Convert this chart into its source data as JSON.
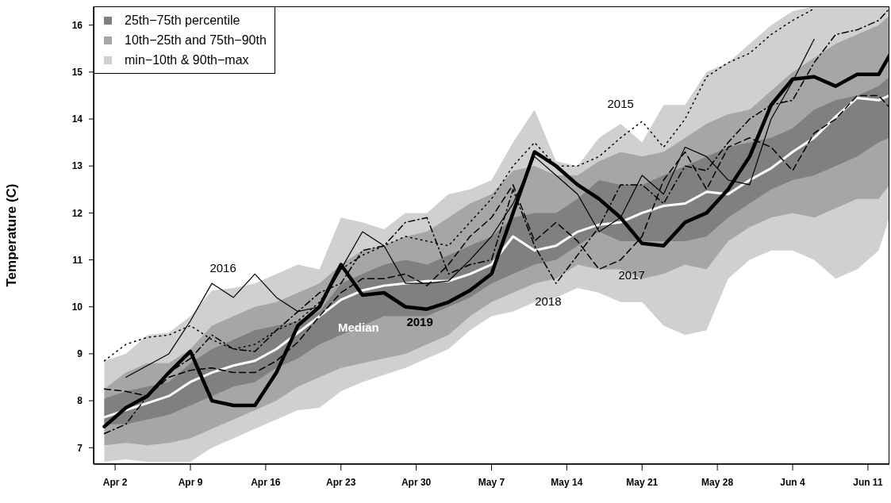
{
  "chart_data": {
    "type": "line",
    "ylabel": "Temperature (C)",
    "x": [
      "--04-01",
      "--04-03",
      "--04-05",
      "--04-07",
      "--04-09",
      "--04-11",
      "--04-13",
      "--04-15",
      "--04-17",
      "--04-19",
      "--04-21",
      "--04-23",
      "--04-25",
      "--04-27",
      "--04-29",
      "--05-01",
      "--05-03",
      "--05-05",
      "--05-07",
      "--05-09",
      "--05-11",
      "--05-13",
      "--05-15",
      "--05-17",
      "--05-19",
      "--05-21",
      "--05-23",
      "--05-25",
      "--05-27",
      "--05-29",
      "--05-31",
      "--06-02",
      "--06-04",
      "--06-06",
      "--06-08",
      "--06-10",
      "--06-12",
      "--06-13"
    ],
    "xlim": [
      "--03-31",
      "--06-13"
    ],
    "xticks": [
      {
        "value": "--04-02",
        "label": "Apr 2"
      },
      {
        "value": "--04-09",
        "label": "Apr 9"
      },
      {
        "value": "--04-16",
        "label": "Apr 16"
      },
      {
        "value": "--04-23",
        "label": "Apr 23"
      },
      {
        "value": "--04-30",
        "label": "Apr 30"
      },
      {
        "value": "--05-07",
        "label": "May 7"
      },
      {
        "value": "--05-14",
        "label": "May 14"
      },
      {
        "value": "--05-21",
        "label": "May 21"
      },
      {
        "value": "--05-28",
        "label": "May 28"
      },
      {
        "value": "--06-04",
        "label": "Jun 4"
      },
      {
        "value": "--06-11",
        "label": "Jun 11"
      }
    ],
    "ylim": [
      6.65,
      16.4
    ],
    "yticks": [
      7,
      8,
      9,
      10,
      11,
      12,
      13,
      14,
      15,
      16
    ],
    "grid": false,
    "legend": "top left",
    "series": [
      {
        "type": "area",
        "name": "min−10th & 90th−max",
        "color": "#d0d0d0",
        "values": [
          null,
          null,
          null,
          null,
          null,
          null,
          null,
          null,
          null,
          null,
          null,
          null,
          null,
          null,
          null,
          null,
          null,
          null,
          null,
          null,
          null,
          null,
          null,
          null,
          null,
          null,
          null,
          null,
          null,
          null,
          null,
          null,
          null,
          null,
          null,
          null,
          null,
          null
        ],
        "lower": [
          6.7,
          6.75,
          6.7,
          6.7,
          6.7,
          7.0,
          7.2,
          7.4,
          7.6,
          7.8,
          7.85,
          8.2,
          8.4,
          8.55,
          8.7,
          8.9,
          9.1,
          9.5,
          9.8,
          9.9,
          10.1,
          10.2,
          10.4,
          10.3,
          10.1,
          10.1,
          9.6,
          9.4,
          9.5,
          10.6,
          11.0,
          11.2,
          11.2,
          11.0,
          10.6,
          10.8,
          11.2,
          11.9
        ],
        "upper": [
          8.85,
          9.0,
          9.4,
          9.45,
          9.8,
          10.35,
          10.4,
          10.5,
          10.7,
          10.9,
          10.8,
          11.9,
          11.8,
          11.65,
          12.0,
          12.0,
          12.4,
          12.5,
          12.7,
          13.5,
          14.2,
          13.1,
          13.0,
          13.6,
          13.9,
          13.5,
          14.3,
          14.3,
          15.0,
          15.2,
          15.6,
          16.0,
          16.3,
          16.4,
          16.4,
          16.4,
          16.4,
          16.4
        ]
      },
      {
        "type": "area",
        "name": "10th−25th and 75th−90th",
        "color": "#a6a6a6",
        "values": [
          null,
          null,
          null,
          null,
          null,
          null,
          null,
          null,
          null,
          null,
          null,
          null,
          null,
          null,
          null,
          null,
          null,
          null,
          null,
          null,
          null,
          null,
          null,
          null,
          null,
          null,
          null,
          null,
          null,
          null,
          null,
          null,
          null,
          null,
          null,
          null,
          null,
          null
        ],
        "lower": [
          7.05,
          7.1,
          7.05,
          7.1,
          7.2,
          7.4,
          7.6,
          7.8,
          8.0,
          8.3,
          8.5,
          8.7,
          8.8,
          8.9,
          9.0,
          9.2,
          9.4,
          9.8,
          10.1,
          10.3,
          10.5,
          10.6,
          10.9,
          10.8,
          10.8,
          10.6,
          10.7,
          10.9,
          10.8,
          11.4,
          11.7,
          11.9,
          12.0,
          11.9,
          12.1,
          12.3,
          12.3,
          12.6
        ],
        "upper": [
          8.25,
          8.6,
          8.8,
          8.8,
          9.1,
          9.6,
          9.8,
          10.0,
          10.1,
          10.3,
          10.5,
          10.9,
          11.2,
          11.3,
          11.5,
          11.6,
          11.9,
          12.2,
          12.4,
          12.9,
          13.0,
          12.8,
          12.8,
          13.1,
          13.3,
          13.2,
          13.3,
          13.6,
          13.9,
          14.1,
          14.2,
          14.6,
          15.0,
          15.3,
          15.6,
          15.8,
          16.0,
          16.2
        ]
      },
      {
        "type": "area",
        "name": "25th−75th percentile",
        "color": "#808080",
        "values": [
          null,
          null,
          null,
          null,
          null,
          null,
          null,
          null,
          null,
          null,
          null,
          null,
          null,
          null,
          null,
          null,
          null,
          null,
          null,
          null,
          null,
          null,
          null,
          null,
          null,
          null,
          null,
          null,
          null,
          null,
          null,
          null,
          null,
          null,
          null,
          null,
          null,
          null
        ],
        "lower": [
          7.5,
          7.5,
          7.6,
          7.7,
          7.9,
          8.1,
          8.3,
          8.4,
          8.7,
          8.9,
          9.2,
          9.4,
          9.6,
          9.8,
          9.8,
          9.8,
          10.0,
          10.2,
          10.5,
          10.7,
          10.9,
          11.0,
          11.3,
          11.6,
          11.4,
          11.4,
          11.4,
          11.4,
          11.5,
          11.9,
          12.2,
          12.5,
          12.7,
          12.8,
          13.0,
          13.2,
          13.5,
          13.6
        ],
        "upper": [
          8.05,
          8.2,
          8.3,
          8.4,
          8.8,
          9.1,
          9.3,
          9.5,
          9.6,
          9.7,
          9.9,
          10.5,
          10.7,
          10.9,
          11.0,
          10.9,
          11.1,
          11.3,
          11.5,
          11.9,
          12.0,
          12.0,
          12.3,
          12.7,
          12.6,
          12.6,
          12.8,
          13.0,
          13.2,
          13.4,
          13.5,
          13.6,
          13.8,
          14.2,
          14.4,
          14.5,
          14.7,
          14.9
        ]
      },
      {
        "name": "Median",
        "color": "#ffffff",
        "line_style": "solid",
        "values": [
          7.65,
          7.8,
          7.95,
          8.1,
          8.4,
          8.6,
          8.75,
          8.85,
          9.1,
          9.45,
          9.8,
          10.15,
          10.35,
          10.45,
          10.5,
          10.55,
          10.55,
          10.7,
          10.9,
          11.5,
          11.2,
          11.3,
          11.6,
          11.75,
          11.8,
          12.0,
          12.15,
          12.2,
          12.45,
          12.4,
          12.7,
          12.95,
          13.3,
          13.6,
          14.05,
          14.45,
          14.4,
          14.5
        ]
      },
      {
        "name": "2015",
        "color": "#000000",
        "line_style": "dotted",
        "values": [
          8.85,
          9.2,
          9.35,
          9.4,
          9.6,
          9.3,
          9.1,
          9.2,
          9.5,
          9.7,
          10.1,
          10.8,
          11.1,
          11.3,
          11.5,
          11.4,
          11.3,
          11.8,
          12.3,
          13.0,
          13.5,
          13.0,
          13.0,
          13.2,
          13.6,
          13.95,
          13.4,
          14.0,
          14.9,
          15.2,
          15.4,
          15.8,
          16.1,
          16.35,
          null,
          null,
          null,
          null
        ]
      },
      {
        "name": "2016",
        "color": "#000000",
        "line_style": "solid",
        "values": [
          null,
          8.5,
          8.75,
          9.0,
          9.7,
          10.5,
          10.2,
          10.7,
          10.2,
          9.9,
          10.0,
          10.8,
          11.6,
          11.3,
          10.5,
          10.5,
          10.55,
          11.0,
          11.5,
          12.2,
          13.2,
          12.8,
          12.4,
          11.6,
          11.9,
          12.8,
          12.4,
          13.4,
          13.2,
          12.7,
          12.6,
          14.0,
          14.8,
          15.7,
          null,
          null,
          null,
          null
        ]
      },
      {
        "name": "2017",
        "color": "#000000",
        "line_style": "dashed",
        "values": [
          8.25,
          8.2,
          8.1,
          8.5,
          8.65,
          8.7,
          8.6,
          8.6,
          8.85,
          9.25,
          9.8,
          10.3,
          10.6,
          10.6,
          10.7,
          10.45,
          10.9,
          11.5,
          11.9,
          12.6,
          11.4,
          11.8,
          11.4,
          10.8,
          11.0,
          11.5,
          12.7,
          13.3,
          12.5,
          13.4,
          13.6,
          13.4,
          12.9,
          13.7,
          14.0,
          14.5,
          14.5,
          14.25
        ]
      },
      {
        "name": "2018",
        "color": "#000000",
        "line_style": "dashdot",
        "values": [
          7.3,
          7.5,
          8.1,
          8.6,
          8.9,
          9.4,
          9.1,
          9.05,
          9.5,
          9.9,
          10.3,
          10.5,
          11.2,
          11.3,
          11.8,
          11.9,
          10.7,
          10.9,
          11.0,
          12.5,
          11.3,
          10.5,
          11.1,
          11.7,
          12.6,
          12.6,
          12.2,
          13.0,
          12.9,
          13.5,
          14.0,
          14.3,
          14.4,
          15.2,
          15.8,
          15.9,
          16.1,
          16.35
        ]
      },
      {
        "name": "2019",
        "color": "#000000",
        "line_style": "solid",
        "values": [
          7.45,
          7.85,
          8.1,
          8.6,
          9.05,
          8.0,
          7.9,
          7.9,
          8.6,
          9.6,
          10.0,
          10.9,
          10.25,
          10.3,
          10.0,
          9.95,
          10.1,
          10.35,
          10.7,
          12.0,
          13.3,
          13.0,
          12.6,
          12.3,
          11.9,
          11.35,
          11.3,
          11.8,
          12.0,
          12.5,
          13.2,
          14.3,
          14.85,
          14.9,
          14.7,
          14.95,
          14.95,
          15.35
        ]
      }
    ]
  }
}
